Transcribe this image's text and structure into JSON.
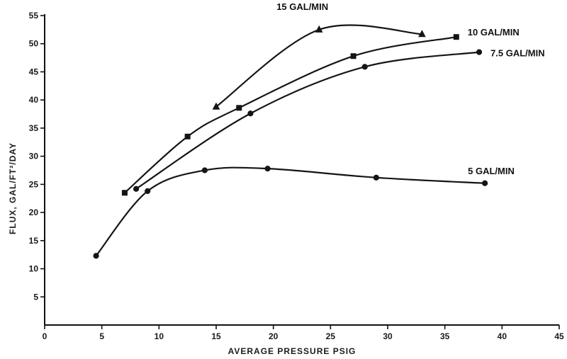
{
  "chart_data": {
    "type": "line",
    "title": "",
    "xlabel": "AVERAGE PRESSURE PSIG",
    "ylabel": "FLUX, GAL/FT²/DAY",
    "xlim": [
      0,
      45
    ],
    "ylim": [
      0,
      55
    ],
    "x_ticks": [
      0,
      5,
      10,
      15,
      20,
      25,
      30,
      35,
      40,
      45
    ],
    "y_ticks": [
      5,
      10,
      15,
      20,
      25,
      30,
      35,
      40,
      45,
      50,
      55
    ],
    "grid": false,
    "legend": "none",
    "series": [
      {
        "name": "15 GAL/MIN",
        "marker": "triangle",
        "x": [
          15.0,
          24.0,
          33.0
        ],
        "y": [
          38.8,
          52.5,
          51.7
        ]
      },
      {
        "name": "10 GAL/MIN",
        "marker": "square",
        "x": [
          7.0,
          12.5,
          17.0,
          27.0,
          36.0
        ],
        "y": [
          23.5,
          33.5,
          38.6,
          47.8,
          51.2
        ]
      },
      {
        "name": "7.5 GAL/MIN",
        "marker": "circle",
        "x": [
          8.0,
          18.0,
          28.0,
          38.0
        ],
        "y": [
          24.2,
          37.6,
          45.9,
          48.5
        ]
      },
      {
        "name": "5 GAL/MIN",
        "marker": "circle",
        "x": [
          4.5,
          9.0,
          14.0,
          19.5,
          29.0,
          38.5
        ],
        "y": [
          12.3,
          23.8,
          27.5,
          27.8,
          26.2,
          25.2
        ]
      }
    ]
  }
}
